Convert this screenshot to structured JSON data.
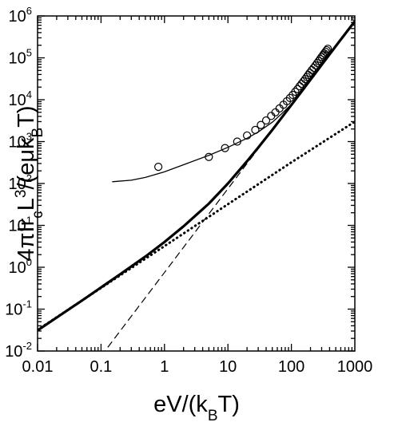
{
  "chart_data": {
    "type": "line",
    "xlabel": {
      "parts": [
        {
          "t": "eV/(k"
        },
        {
          "t": "B",
          "sub": true
        },
        {
          "t": "T)"
        }
      ]
    },
    "ylabel": {
      "parts": [
        {
          "t": "4πIr"
        },
        {
          "t": "c",
          "sub": true
        },
        {
          "t": "L"
        },
        {
          "t": "3",
          "sup": true
        },
        {
          "t": "/(eμk"
        },
        {
          "t": "B",
          "sub": true
        },
        {
          "t": "T)"
        }
      ]
    },
    "x_scale": "log",
    "y_scale": "log",
    "xlim": [
      0.01,
      1000
    ],
    "ylim": [
      0.01,
      1000000
    ],
    "x_ticks": [
      {
        "value": 0.01,
        "label": "0.01"
      },
      {
        "value": 0.1,
        "label": "0.1"
      },
      {
        "value": 1,
        "label": "1"
      },
      {
        "value": 10,
        "label": "10"
      },
      {
        "value": 100,
        "label": "100"
      },
      {
        "value": 1000,
        "label": "1000"
      }
    ],
    "y_ticks": [
      {
        "value": 0.01,
        "base": "10",
        "exp": "-2"
      },
      {
        "value": 0.1,
        "base": "10",
        "exp": "-1"
      },
      {
        "value": 1,
        "base": "10",
        "exp": "0"
      },
      {
        "value": 10,
        "base": "10",
        "exp": "1"
      },
      {
        "value": 100,
        "base": "10",
        "exp": "2"
      },
      {
        "value": 1000,
        "base": "10",
        "exp": "3"
      },
      {
        "value": 10000,
        "base": "10",
        "exp": "4"
      },
      {
        "value": 100000,
        "base": "10",
        "exp": "5"
      },
      {
        "value": 1000000,
        "base": "10",
        "exp": "6"
      }
    ],
    "grid": false,
    "legend": "none",
    "series": [
      {
        "style": "thick-solid",
        "x": [
          0.01,
          0.02,
          0.05,
          0.1,
          0.2,
          0.5,
          1,
          2,
          5,
          10,
          20,
          30,
          50,
          70,
          100,
          200,
          300,
          500,
          1000
        ],
        "y": [
          0.031,
          0.063,
          0.16,
          0.33,
          0.68,
          1.8,
          4.0,
          9.5,
          33,
          100,
          340,
          720,
          1900,
          3700,
          7500,
          30000,
          68000,
          190000,
          750000
        ]
      },
      {
        "style": "thin-solid",
        "x": [
          0.15,
          0.3,
          0.5,
          1,
          2,
          5,
          10,
          20,
          30,
          50,
          70,
          100,
          200,
          300,
          500,
          1000
        ],
        "y": [
          110,
          120,
          140,
          190,
          280,
          470,
          730,
          1200,
          1700,
          2900,
          4600,
          7800,
          30000,
          68000,
          190000,
          750000
        ]
      },
      {
        "style": "dashed",
        "x": [
          0.1,
          1,
          10,
          100,
          1000
        ],
        "y": [
          0.0075,
          0.75,
          75,
          7500,
          750000
        ]
      },
      {
        "style": "dotted",
        "x": [
          0.01,
          0.1,
          1,
          10,
          100,
          1000
        ],
        "y": [
          0.032,
          0.32,
          3.2,
          32,
          320,
          3000
        ]
      },
      {
        "style": "open-circles",
        "x": [
          0.8,
          5,
          9,
          14,
          20,
          27,
          33,
          40,
          48,
          56,
          65,
          75,
          85,
          95,
          105,
          115,
          125,
          135,
          145,
          155,
          165,
          175,
          185,
          195,
          210,
          225,
          240,
          255,
          270,
          285,
          300,
          315,
          330,
          345,
          360,
          375
        ],
        "y": [
          250,
          430,
          700,
          1000,
          1400,
          1900,
          2500,
          3200,
          4100,
          5000,
          6200,
          7600,
          9200,
          11000,
          13000,
          15500,
          18000,
          21000,
          24000,
          27500,
          31000,
          35000,
          39000,
          44000,
          51000,
          58000,
          66000,
          75000,
          84000,
          94000,
          105000,
          116000,
          128000,
          140000,
          152000,
          165000
        ]
      }
    ]
  }
}
